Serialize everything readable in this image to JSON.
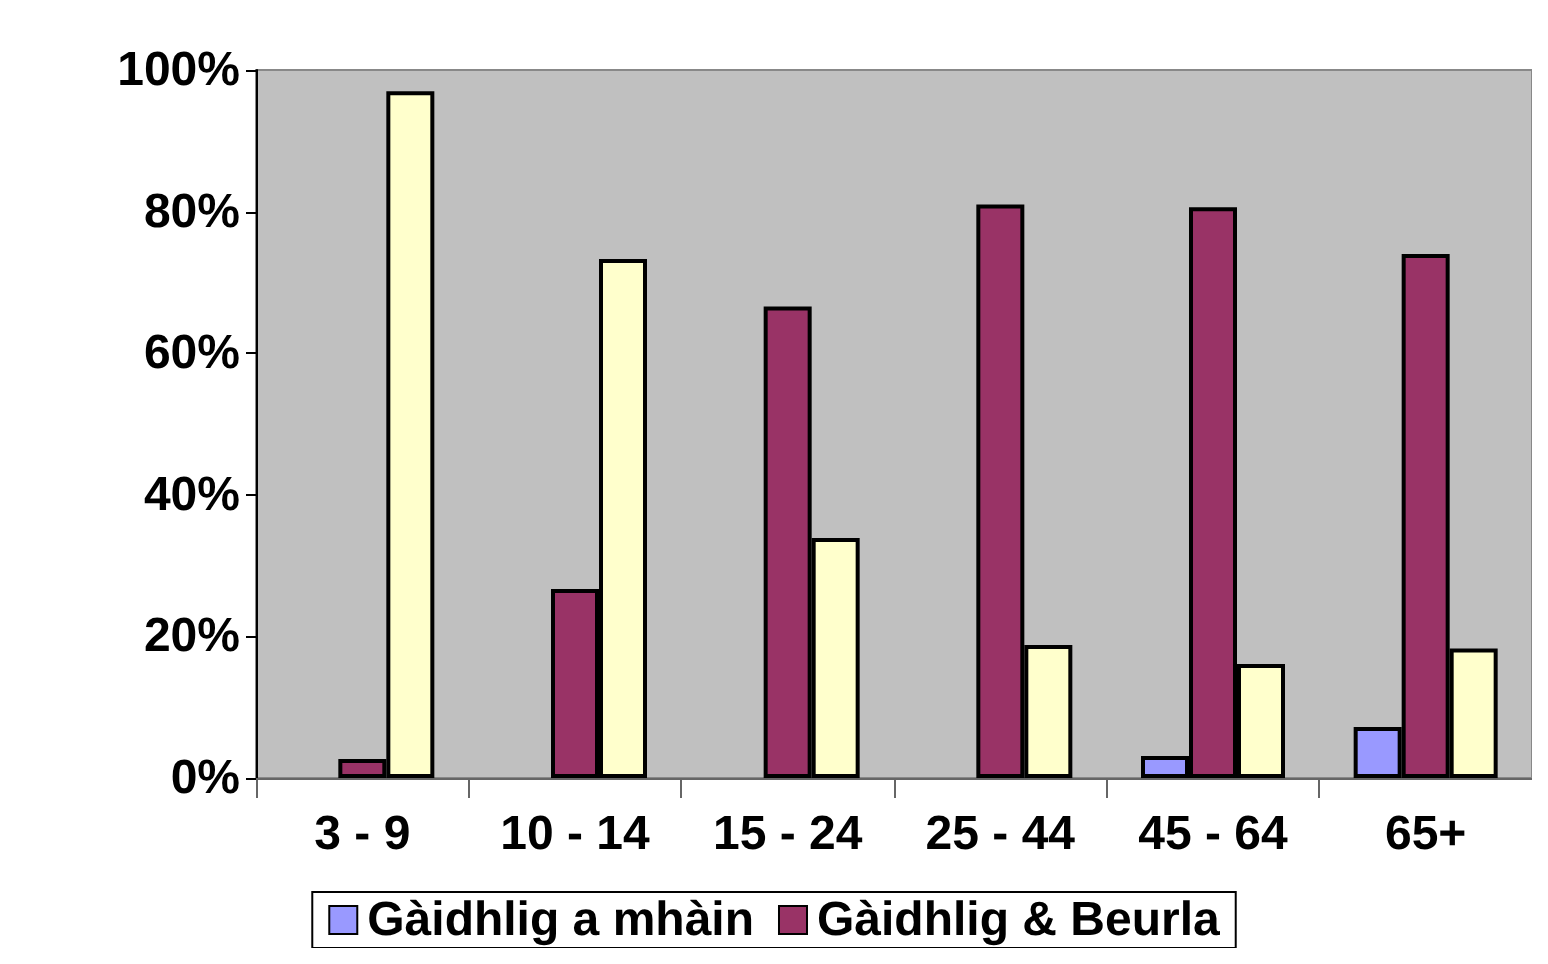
{
  "chart_data": {
    "type": "bar",
    "categories": [
      "3 - 9",
      "10 - 14",
      "15 - 24",
      "25 - 44",
      "45 - 64",
      "65+"
    ],
    "series": [
      {
        "name": "Gàidhlig a mhàin",
        "color": "#9999ff",
        "values": [
          0,
          0,
          0,
          0,
          3.1,
          7.2
        ]
      },
      {
        "name": "Gàidhlig & Beurla",
        "color": "#993366",
        "values": [
          2.7,
          26.7,
          66.6,
          81,
          80.6,
          74
        ]
      },
      {
        "color": "#ffffcc",
        "values": [
          97,
          73.3,
          33.9,
          18.8,
          16.1,
          18.3
        ]
      }
    ],
    "ylim": [
      0,
      100
    ],
    "yticks": [
      {
        "value": 0,
        "label": "0%"
      },
      {
        "value": 20,
        "label": "20%"
      },
      {
        "value": 40,
        "label": "40%"
      },
      {
        "value": 60,
        "label": "60%"
      },
      {
        "value": 80,
        "label": "80%"
      },
      {
        "value": 100,
        "label": "100%"
      }
    ],
    "grid": false,
    "legend": "bottom"
  }
}
